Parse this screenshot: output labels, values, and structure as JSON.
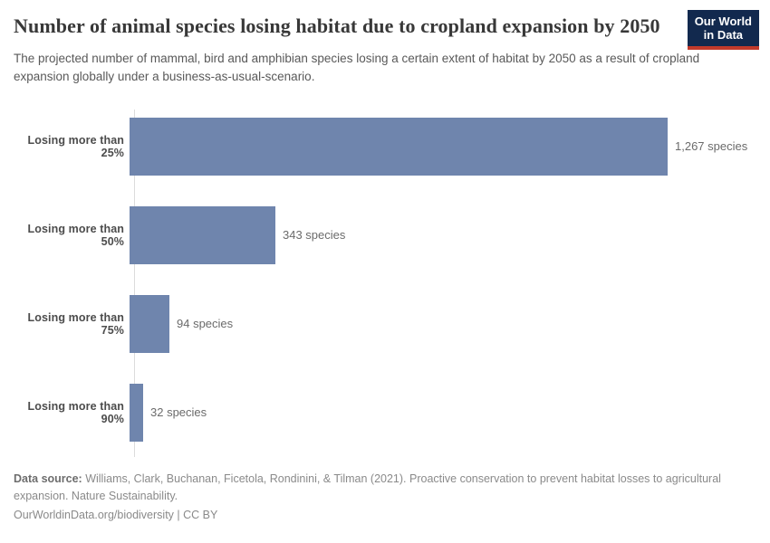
{
  "header": {
    "title": "Number of animal species losing habitat due to cropland expansion by 2050",
    "subtitle": "The projected number of mammal, bird and amphibian species losing a certain extent of habitat by 2050 as a result of cropland expansion globally under a business-as-usual-scenario.",
    "logo": {
      "line1": "Our World",
      "line2": "in Data",
      "bg_color": "#12294e",
      "accent_color": "#c23a2b"
    }
  },
  "chart_data": {
    "type": "bar",
    "orientation": "horizontal",
    "title": "Number of animal species losing habitat due to cropland expansion by 2050",
    "categories": [
      "Losing more than 25%",
      "Losing more than 50%",
      "Losing more than 75%",
      "Losing more than 90%"
    ],
    "values": [
      1267,
      343,
      94,
      32
    ],
    "value_labels": [
      "1,267 species",
      "343 species",
      "94 species",
      "32 species"
    ],
    "unit": "species",
    "xlabel": "",
    "ylabel": "",
    "xlim": [
      0,
      1267
    ],
    "grid": false,
    "legend": "none",
    "bar_color": "#6f85ad",
    "axis_line_color": "#dcdcdc"
  },
  "footer": {
    "data_source_label": "Data source:",
    "data_source_text": " Williams, Clark, Buchanan, Ficetola, Rondinini, & Tilman (2021). Proactive conservation to prevent habitat losses to agricultural expansion. Nature Sustainability.",
    "link_text": "OurWorldinData.org/biodiversity | CC BY"
  }
}
